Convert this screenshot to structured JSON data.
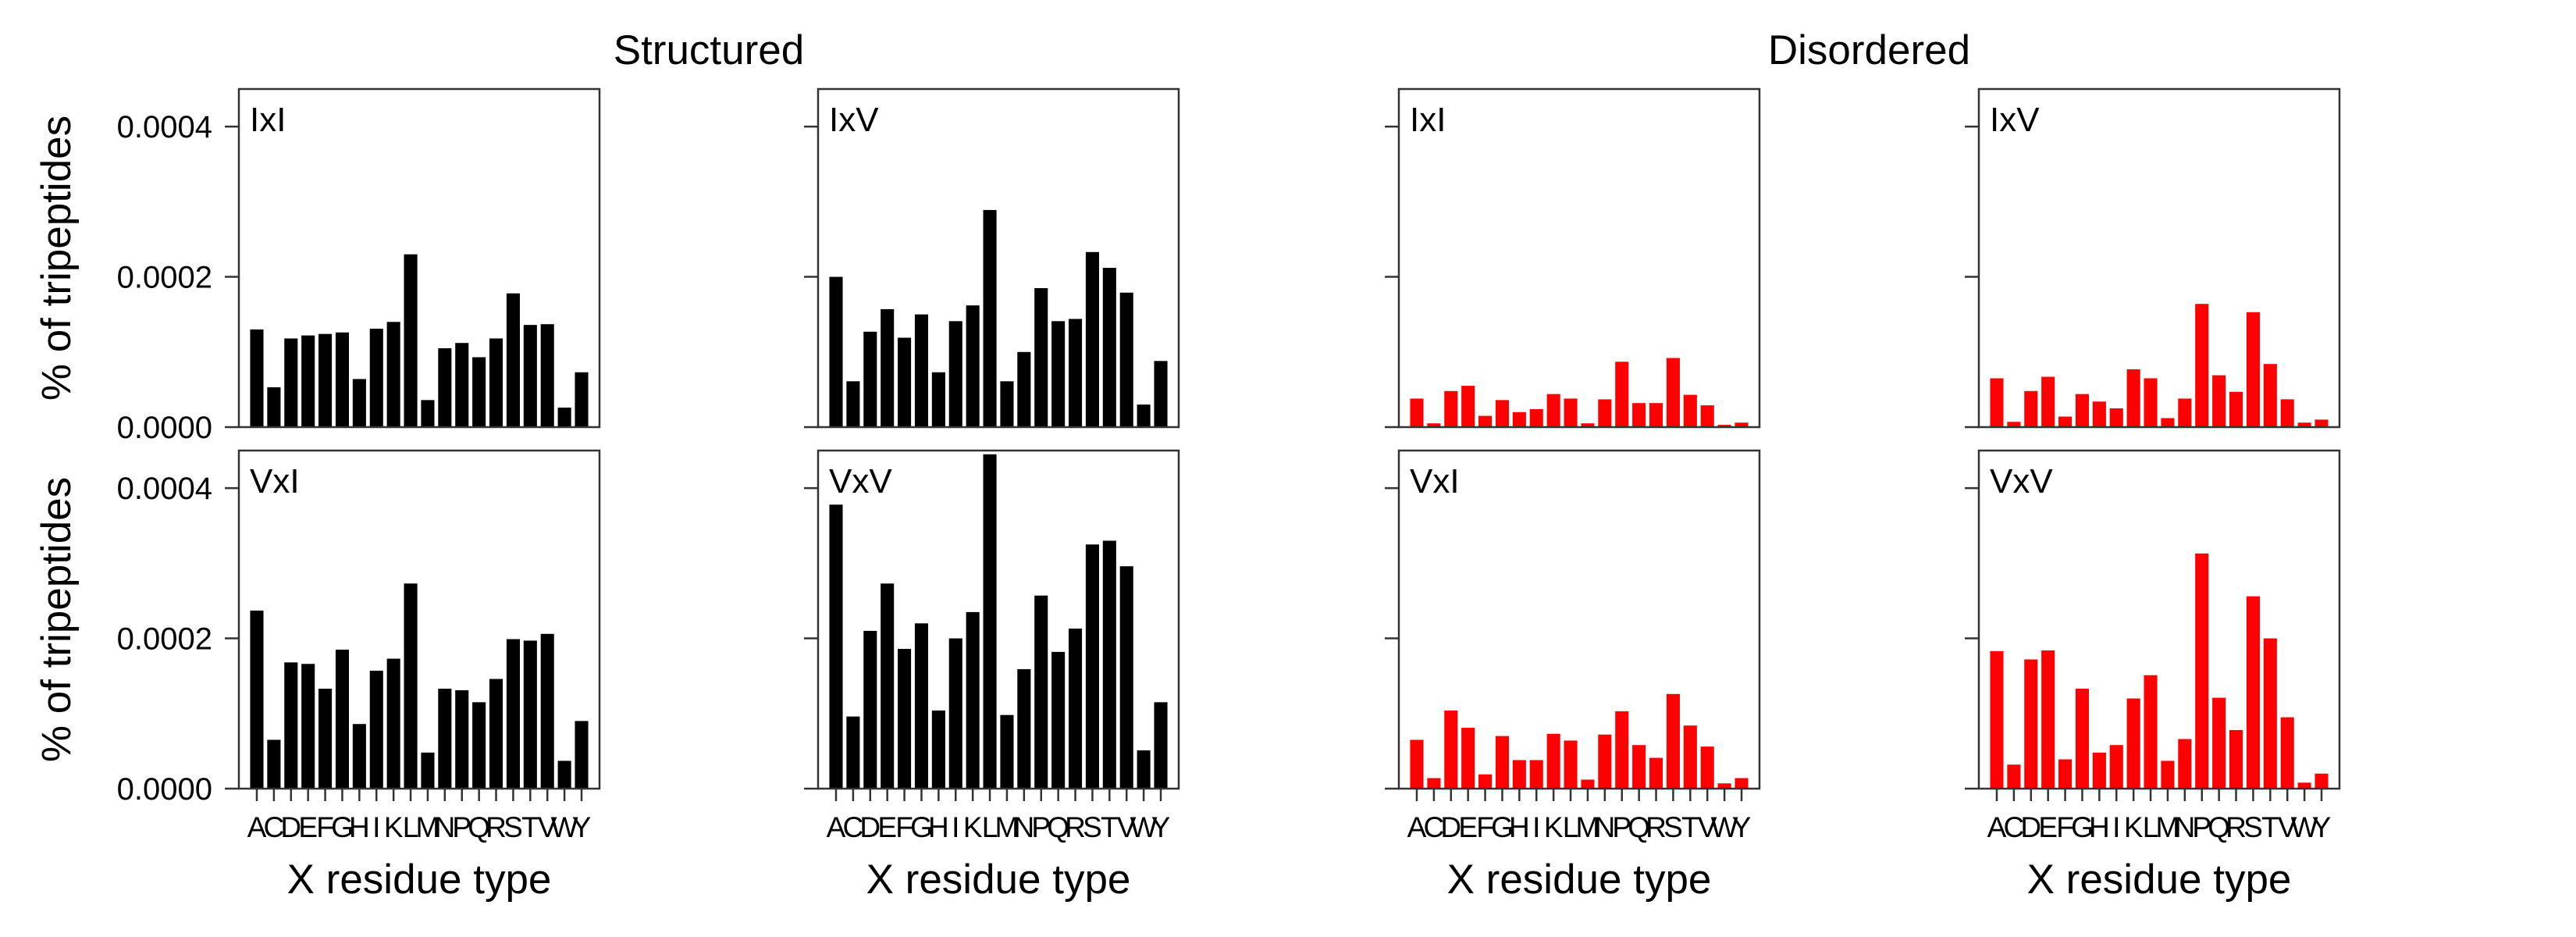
{
  "headers": {
    "structured": "Structured",
    "disordered": "Disordered"
  },
  "colors": {
    "structured": "#000000",
    "disordered": "#ff0000"
  },
  "chart_data": {
    "type": "bar",
    "layout": "2x4 grid of small multiples",
    "ylabel": "% of tripeptides",
    "xlabel": "X residue type",
    "ylim": [
      0,
      0.00045
    ],
    "yticks": [
      "0.0000",
      "0.0002",
      "0.0004"
    ],
    "ytick_values": [
      0,
      0.0002,
      0.0004
    ],
    "categories": [
      "A",
      "C",
      "D",
      "E",
      "F",
      "G",
      "H",
      "I",
      "K",
      "L",
      "M",
      "N",
      "P",
      "Q",
      "R",
      "S",
      "T",
      "V",
      "W",
      "Y"
    ],
    "panels": [
      {
        "group": "structured",
        "row": 0,
        "col": 0,
        "name": "IxI",
        "values": [
          0.00013,
          5.3e-05,
          0.000118,
          0.000122,
          0.000124,
          0.000126,
          6.4e-05,
          0.000131,
          0.00014,
          0.00023,
          3.6e-05,
          0.000105,
          0.000112,
          9.3e-05,
          0.000118,
          0.000178,
          0.000136,
          0.000137,
          2.6e-05,
          7.3e-05
        ]
      },
      {
        "group": "structured",
        "row": 0,
        "col": 1,
        "name": "IxV",
        "values": [
          0.0002,
          6.1e-05,
          0.000127,
          0.000157,
          0.000119,
          0.00015,
          7.3e-05,
          0.000141,
          0.000162,
          0.000289,
          6.1e-05,
          0.0001,
          0.000185,
          0.000141,
          0.000144,
          0.000233,
          0.000212,
          0.000179,
          3e-05,
          8.8e-05
        ]
      },
      {
        "group": "disordered",
        "row": 0,
        "col": 2,
        "name": "IxI",
        "values": [
          3.8e-05,
          5e-06,
          4.8e-05,
          5.5e-05,
          1.5e-05,
          3.6e-05,
          2e-05,
          2.4e-05,
          4.4e-05,
          3.8e-05,
          5e-06,
          3.7e-05,
          8.7e-05,
          3.2e-05,
          3.2e-05,
          9.2e-05,
          4.3e-05,
          2.9e-05,
          3e-06,
          6e-06
        ]
      },
      {
        "group": "disordered",
        "row": 0,
        "col": 3,
        "name": "IxV",
        "values": [
          6.5e-05,
          7e-06,
          4.8e-05,
          6.7e-05,
          1.4e-05,
          4.4e-05,
          3.4e-05,
          2.5e-05,
          7.7e-05,
          6.5e-05,
          1.2e-05,
          3.8e-05,
          0.000164,
          6.9e-05,
          4.7e-05,
          0.000153,
          8.4e-05,
          3.7e-05,
          6e-06,
          1e-05
        ]
      },
      {
        "group": "structured",
        "row": 1,
        "col": 0,
        "name": "VxI",
        "values": [
          0.000237,
          6.5e-05,
          0.000168,
          0.000166,
          0.000133,
          0.000185,
          8.6e-05,
          0.000157,
          0.000173,
          0.000273,
          4.8e-05,
          0.000133,
          0.000131,
          0.000115,
          0.000146,
          0.000199,
          0.000197,
          0.000206,
          3.7e-05,
          9e-05
        ]
      },
      {
        "group": "structured",
        "row": 1,
        "col": 1,
        "name": "VxV",
        "values": [
          0.000378,
          9.6e-05,
          0.00021,
          0.000273,
          0.000186,
          0.00022,
          0.000104,
          0.0002,
          0.000235,
          0.000445,
          9.8e-05,
          0.000159,
          0.000257,
          0.000182,
          0.000213,
          0.000325,
          0.00033,
          0.000296,
          5.1e-05,
          0.000115
        ]
      },
      {
        "group": "disordered",
        "row": 1,
        "col": 2,
        "name": "VxI",
        "values": [
          6.5e-05,
          1.4e-05,
          0.000104,
          8.1e-05,
          1.9e-05,
          7e-05,
          3.8e-05,
          3.8e-05,
          7.3e-05,
          6.4e-05,
          1.2e-05,
          7.2e-05,
          0.000103,
          5.8e-05,
          4.1e-05,
          0.000126,
          8.4e-05,
          5.6e-05,
          7e-06,
          1.4e-05
        ]
      },
      {
        "group": "disordered",
        "row": 1,
        "col": 3,
        "name": "VxV",
        "values": [
          0.000183,
          3.2e-05,
          0.000172,
          0.000184,
          3.9e-05,
          0.000133,
          4.8e-05,
          5.8e-05,
          0.00012,
          0.000151,
          3.7e-05,
          6.6e-05,
          0.000313,
          0.000121,
          7.8e-05,
          0.000256,
          0.0002,
          9.5e-05,
          8e-06,
          2e-05
        ]
      }
    ]
  }
}
